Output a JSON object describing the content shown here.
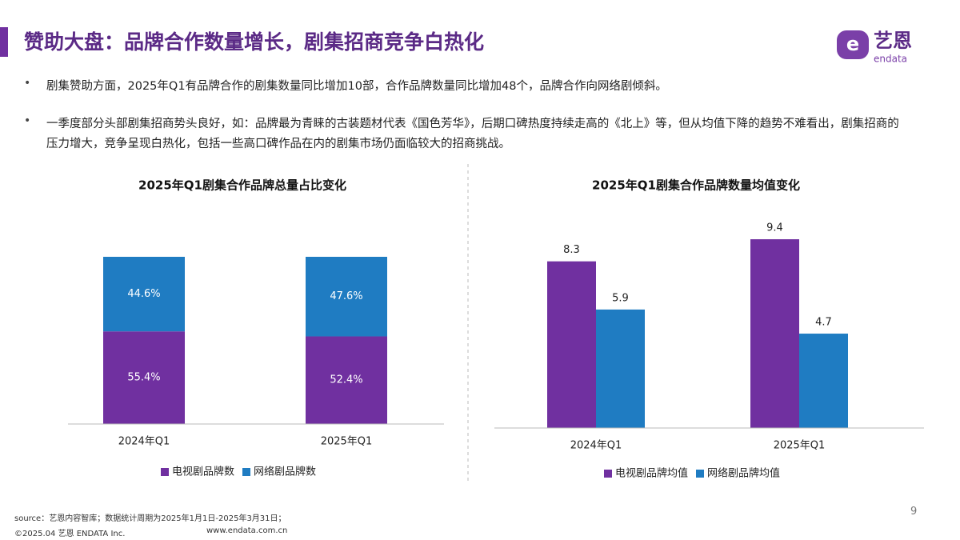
{
  "title": "赞助大盘：品牌合作数量增长，剧集招商竞争白热化",
  "logo": {
    "name": "艺恩",
    "sub": "endata"
  },
  "bullets": [
    "剧集赞助方面，2025年Q1有品牌合作的剧集数量同比增加10部，合作品牌数量同比增加48个，品牌合作向网络剧倾斜。",
    "一季度部分头部剧集招商势头良好，如：品牌最为青睐的古装题材代表《国色芳华》，后期口碑热度持续走高的《北上》等，但从均值下降的趋势不难看出，剧集招商的压力增大，竞争呈现白热化，包括一些高口碑作品在内的剧集市场仍面临较大的招商挑战。"
  ],
  "chart_data": [
    {
      "type": "stacked_bar",
      "title": "2025年Q1剧集合作品牌总量占比变化",
      "categories": [
        "2024年Q1",
        "2025年Q1"
      ],
      "series": [
        {
          "name": "电视剧品牌数",
          "color": "#7030a0",
          "values": [
            55.4,
            52.4
          ],
          "value_labels": [
            "55.4%",
            "52.4%"
          ]
        },
        {
          "name": "网络剧品牌数",
          "color": "#1f7cc2",
          "values": [
            44.6,
            47.6
          ],
          "value_labels": [
            "44.6%",
            "47.6%"
          ]
        }
      ],
      "ylim": [
        0,
        100
      ]
    },
    {
      "type": "bar",
      "title": "2025年Q1剧集合作品牌数量均值变化",
      "categories": [
        "2024年Q1",
        "2025年Q1"
      ],
      "series": [
        {
          "name": "电视剧品牌均值",
          "color": "#7030a0",
          "values": [
            8.3,
            9.4
          ]
        },
        {
          "name": "网络剧品牌均值",
          "color": "#1f7cc2",
          "values": [
            5.9,
            4.7
          ]
        }
      ],
      "ylim": [
        0,
        10
      ]
    }
  ],
  "footer": {
    "source": "source：艺恩内容智库；数据统计周期为2025年1月1日-2025年3月31日；",
    "copyright": "©2025.04 艺恩 ENDATA Inc.",
    "url": "www.endata.com.cn",
    "page": "9"
  }
}
